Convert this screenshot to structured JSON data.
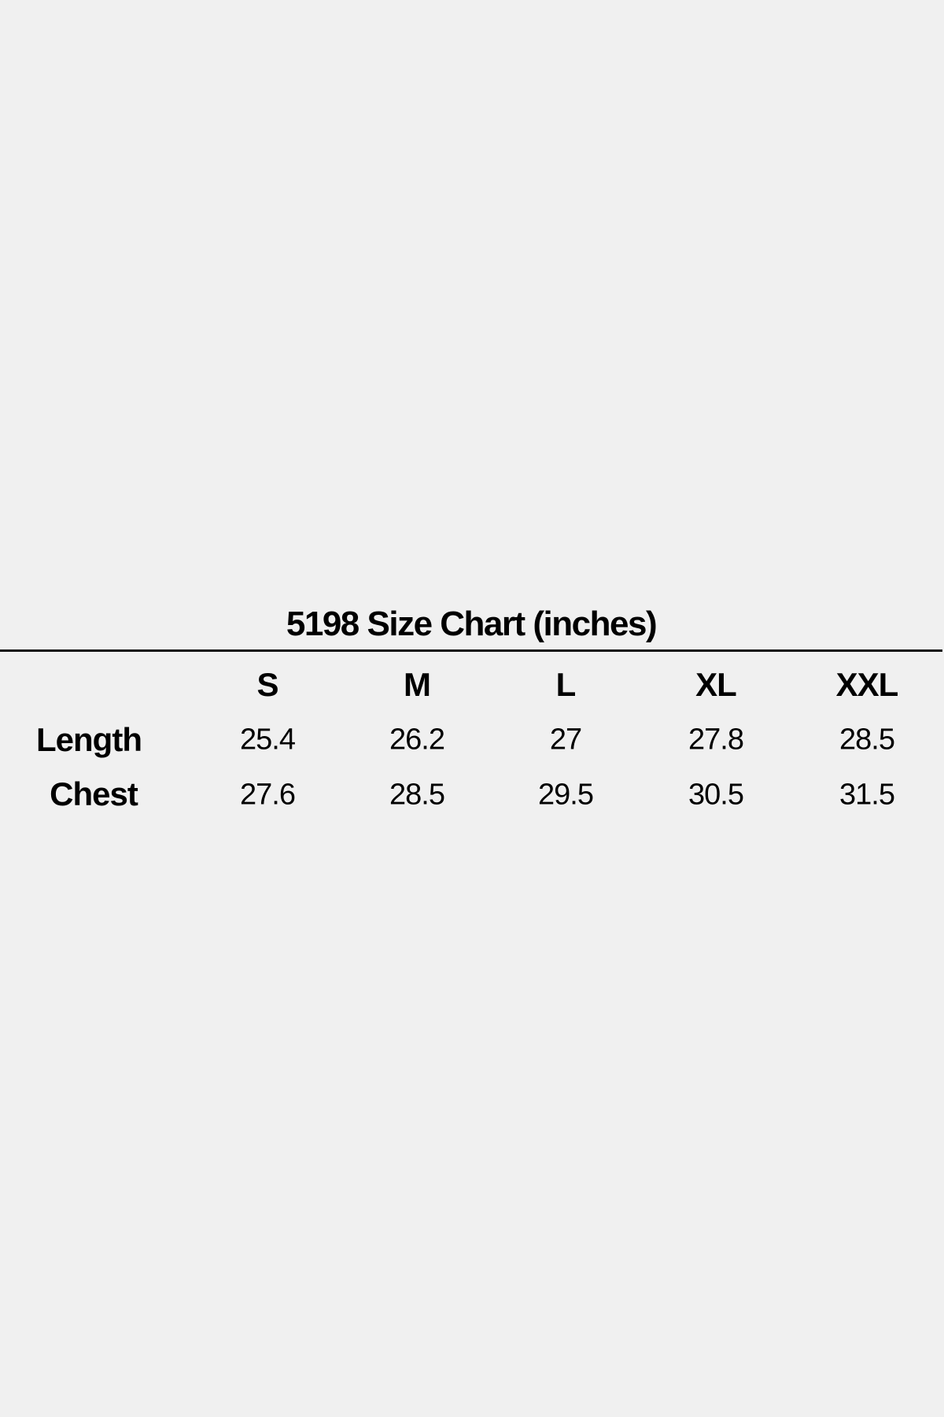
{
  "title": "5198 Size Chart (inches)",
  "sizes": [
    "S",
    "M",
    "L",
    "XL",
    "XXL"
  ],
  "rows": [
    {
      "label": "Length",
      "values": [
        "25.4",
        "26.2",
        "27",
        "27.8",
        "28.5"
      ]
    },
    {
      "label": "Chest",
      "values": [
        "27.6",
        "28.5",
        "29.5",
        "30.5",
        "31.5"
      ]
    }
  ]
}
